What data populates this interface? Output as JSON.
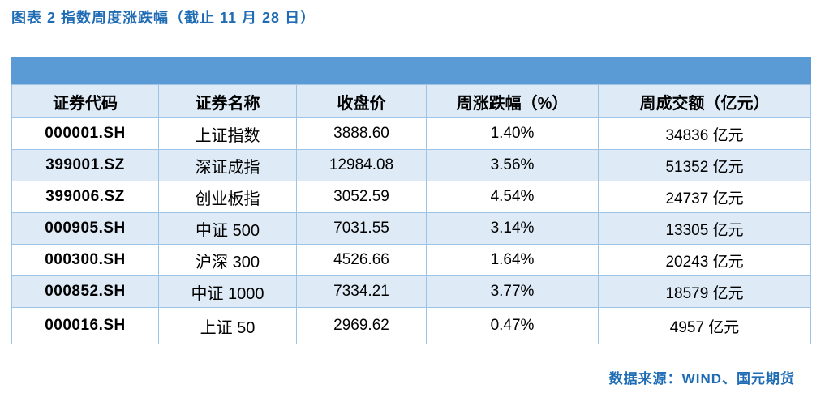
{
  "page": {
    "title": "图表 2 指数周度涨跌幅（截止 11 月 28 日）",
    "source_note": "数据来源：WIND、国元期货"
  },
  "colors": {
    "accent_blue": "#5B9BD5",
    "row_light_blue": "#DEEBF7",
    "grid_border_blue": "#9DC3E6",
    "title_text_blue": "#1F6CB5",
    "body_text_black": "#000000"
  },
  "table": {
    "columns": [
      "证券代码",
      "证券名称",
      "收盘价",
      "周涨跌幅（%）",
      "周成交额（亿元）"
    ],
    "rows": [
      {
        "code": "000001.SH",
        "name": "上证指数",
        "close": "3888.60",
        "weekly_change": "1.40%",
        "weekly_turnover": "34836 亿元"
      },
      {
        "code": "399001.SZ",
        "name": "深证成指",
        "close": "12984.08",
        "weekly_change": "3.56%",
        "weekly_turnover": "51352 亿元"
      },
      {
        "code": "399006.SZ",
        "name": "创业板指",
        "close": "3052.59",
        "weekly_change": "4.54%",
        "weekly_turnover": "24737 亿元"
      },
      {
        "code": "000905.SH",
        "name": "中证 500",
        "close": "7031.55",
        "weekly_change": "3.14%",
        "weekly_turnover": "13305 亿元"
      },
      {
        "code": "000300.SH",
        "name": "沪深 300",
        "close": "4526.66",
        "weekly_change": "1.64%",
        "weekly_turnover": "20243 亿元"
      },
      {
        "code": "000852.SH",
        "name": "中证 1000",
        "close": "7334.21",
        "weekly_change": "3.77%",
        "weekly_turnover": "18579 亿元"
      },
      {
        "code": "000016.SH",
        "name": "上证 50",
        "close": "2969.62",
        "weekly_change": "0.47%",
        "weekly_turnover": "4957 亿元"
      }
    ]
  }
}
